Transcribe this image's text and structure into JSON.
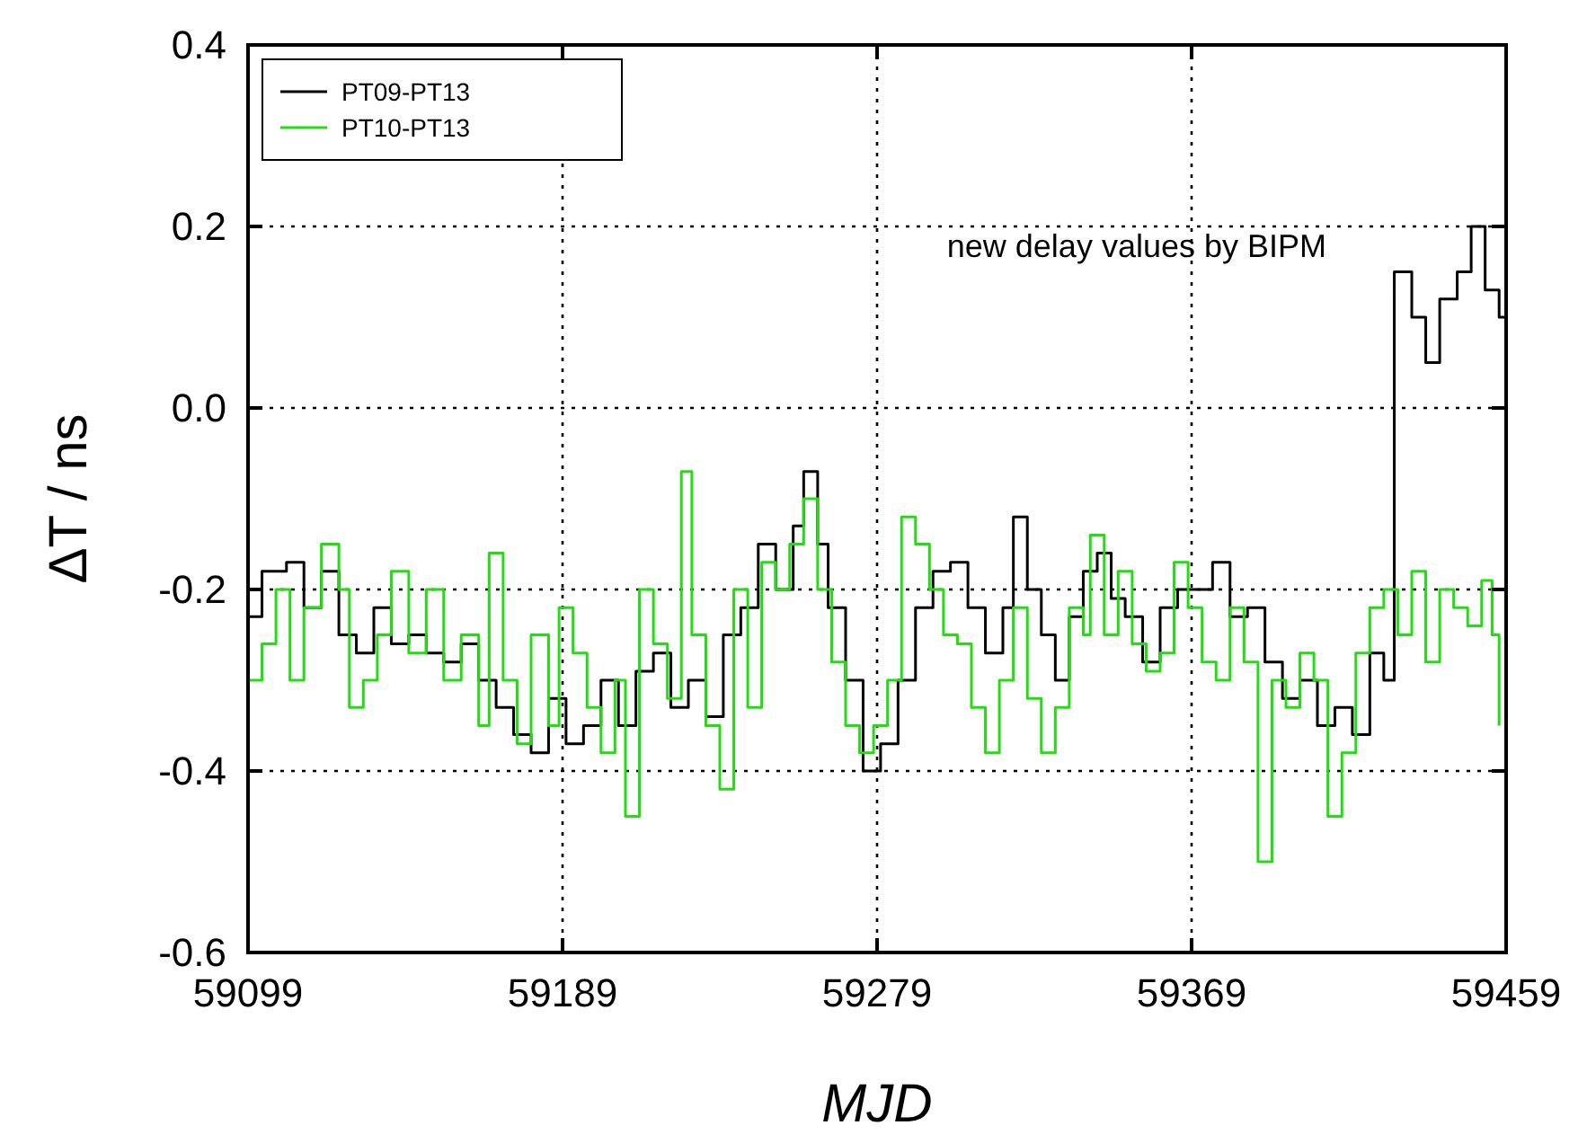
{
  "chart_data": {
    "type": "step",
    "xlabel": "MJD",
    "ylabel": "ΔT / ns",
    "annotations": [
      "new delay values by BIPM"
    ],
    "xlim": [
      59099,
      59459
    ],
    "xticks": [
      59099,
      59189,
      59279,
      59369,
      59459
    ],
    "ylim": [
      -0.6,
      0.4
    ],
    "yticks": [
      -0.6,
      -0.4,
      -0.2,
      {
        "value": 0,
        "label": "0.0"
      },
      0.2,
      0.4
    ],
    "grid": true,
    "legend": "top left",
    "line_style": "solid",
    "marker": "none",
    "series": [
      {
        "name": "PT09-PT13",
        "color": "#000000",
        "x": [
          59099,
          59103,
          59110,
          59115,
          59120,
          59125,
          59130,
          59135,
          59140,
          59145,
          59150,
          59155,
          59160,
          59165,
          59170,
          59175,
          59180,
          59185,
          59190,
          59195,
          59200,
          59205,
          59210,
          59215,
          59220,
          59225,
          59230,
          59235,
          59240,
          59245,
          59250,
          59255,
          59258,
          59262,
          59265,
          59270,
          59275,
          59280,
          59285,
          59290,
          59295,
          59300,
          59305,
          59310,
          59315,
          59318,
          59322,
          59326,
          59330,
          59334,
          59338,
          59342,
          59346,
          59350,
          59355,
          59360,
          59365,
          59370,
          59375,
          59380,
          59385,
          59390,
          59395,
          59400,
          59405,
          59410,
          59415,
          59420,
          59424,
          59427,
          59432,
          59436,
          59440,
          59445,
          59449,
          59453,
          59457,
          59459
        ],
        "values": [
          -0.23,
          -0.18,
          -0.17,
          -0.22,
          -0.18,
          -0.25,
          -0.27,
          -0.22,
          -0.26,
          -0.25,
          -0.27,
          -0.28,
          -0.26,
          -0.3,
          -0.33,
          -0.36,
          -0.38,
          -0.32,
          -0.37,
          -0.35,
          -0.3,
          -0.35,
          -0.29,
          -0.27,
          -0.33,
          -0.3,
          -0.34,
          -0.25,
          -0.22,
          -0.15,
          -0.2,
          -0.13,
          -0.07,
          -0.15,
          -0.22,
          -0.3,
          -0.4,
          -0.37,
          -0.3,
          -0.22,
          -0.18,
          -0.17,
          -0.22,
          -0.27,
          -0.22,
          -0.12,
          -0.2,
          -0.25,
          -0.3,
          -0.23,
          -0.18,
          -0.16,
          -0.21,
          -0.23,
          -0.28,
          -0.22,
          -0.2,
          -0.2,
          -0.17,
          -0.23,
          -0.22,
          -0.28,
          -0.32,
          -0.3,
          -0.35,
          -0.33,
          -0.36,
          -0.27,
          -0.3,
          0.15,
          0.1,
          0.05,
          0.12,
          0.15,
          0.2,
          0.13,
          0.1,
          0.05
        ]
      },
      {
        "name": "PT10-PT13",
        "color": "#22dd11",
        "x": [
          59099,
          59103,
          59107,
          59111,
          59115,
          59120,
          59125,
          59128,
          59132,
          59136,
          59140,
          59145,
          59150,
          59155,
          59160,
          59165,
          59168,
          59172,
          59176,
          59180,
          59185,
          59188,
          59192,
          59196,
          59200,
          59204,
          59207,
          59211,
          59215,
          59219,
          59223,
          59226,
          59230,
          59234,
          59238,
          59242,
          59246,
          59250,
          59254,
          59258,
          59262,
          59266,
          59270,
          59274,
          59278,
          59282,
          59286,
          59290,
          59294,
          59298,
          59302,
          59306,
          59310,
          59314,
          59318,
          59322,
          59326,
          59330,
          59334,
          59338,
          59340,
          59344,
          59348,
          59352,
          59356,
          59360,
          59364,
          59368,
          59372,
          59376,
          59380,
          59384,
          59388,
          59392,
          59396,
          59400,
          59404,
          59408,
          59412,
          59416,
          59420,
          59424,
          59428,
          59432,
          59436,
          59440,
          59444,
          59448,
          59452,
          59455,
          59457
        ],
        "values": [
          -0.3,
          -0.26,
          -0.2,
          -0.3,
          -0.22,
          -0.15,
          -0.2,
          -0.33,
          -0.3,
          -0.25,
          -0.18,
          -0.27,
          -0.2,
          -0.3,
          -0.25,
          -0.35,
          -0.16,
          -0.3,
          -0.37,
          -0.25,
          -0.35,
          -0.22,
          -0.27,
          -0.33,
          -0.38,
          -0.3,
          -0.45,
          -0.2,
          -0.26,
          -0.32,
          -0.07,
          -0.25,
          -0.35,
          -0.42,
          -0.2,
          -0.33,
          -0.17,
          -0.2,
          -0.15,
          -0.1,
          -0.2,
          -0.28,
          -0.35,
          -0.38,
          -0.35,
          -0.3,
          -0.12,
          -0.15,
          -0.2,
          -0.25,
          -0.26,
          -0.33,
          -0.38,
          -0.3,
          -0.22,
          -0.32,
          -0.38,
          -0.33,
          -0.22,
          -0.25,
          -0.14,
          -0.25,
          -0.18,
          -0.26,
          -0.29,
          -0.27,
          -0.17,
          -0.22,
          -0.28,
          -0.3,
          -0.22,
          -0.28,
          -0.5,
          -0.3,
          -0.33,
          -0.27,
          -0.3,
          -0.45,
          -0.38,
          -0.27,
          -0.22,
          -0.2,
          -0.25,
          -0.18,
          -0.28,
          -0.2,
          -0.22,
          -0.24,
          -0.19,
          -0.25,
          -0.35
        ]
      }
    ]
  }
}
